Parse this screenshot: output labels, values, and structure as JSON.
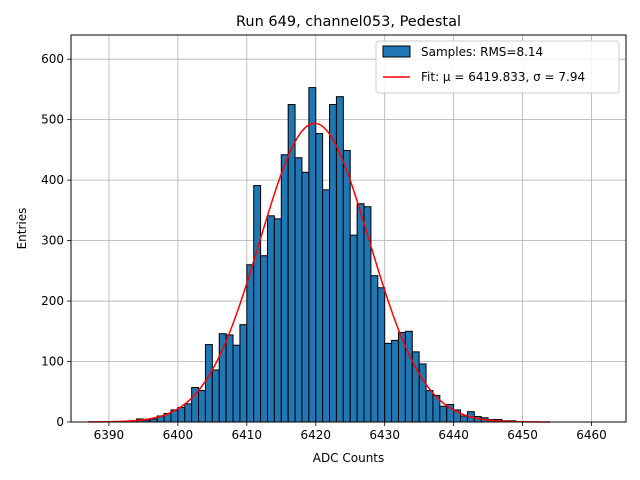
{
  "chart_data": {
    "type": "bar",
    "title": "Run 649, channel053, Pedestal",
    "xlabel": "ADC Counts",
    "ylabel": "Entries",
    "xlim": [
      6384.5,
      6465
    ],
    "ylim": [
      0,
      640
    ],
    "grid": true,
    "legend_position": "upper-right",
    "x_ticks": [
      6390,
      6400,
      6410,
      6420,
      6430,
      6440,
      6450,
      6460
    ],
    "y_ticks": [
      0,
      100,
      200,
      300,
      400,
      500,
      600
    ],
    "bin_width": 1,
    "colors": {
      "bar": "#1f77b4",
      "edge": "#000000",
      "fit": "#ff0000",
      "grid": "#b0b0b0"
    },
    "bins": {
      "x": [
        6387,
        6388,
        6389,
        6390,
        6391,
        6392,
        6393,
        6394,
        6395,
        6396,
        6397,
        6398,
        6399,
        6400,
        6401,
        6402,
        6403,
        6404,
        6405,
        6406,
        6407,
        6408,
        6409,
        6410,
        6411,
        6412,
        6413,
        6414,
        6415,
        6416,
        6417,
        6418,
        6419,
        6420,
        6421,
        6422,
        6423,
        6424,
        6425,
        6426,
        6427,
        6428,
        6429,
        6430,
        6431,
        6432,
        6433,
        6434,
        6435,
        6436,
        6437,
        6438,
        6439,
        6440,
        6441,
        6442,
        6443,
        6444,
        6445,
        6446,
        6447,
        6448,
        6449,
        6450,
        6451,
        6452,
        6453,
        6454
      ],
      "values": [
        0,
        0,
        0,
        0,
        0,
        0,
        0,
        5,
        3,
        5,
        10,
        14,
        20,
        24,
        30,
        57,
        52,
        128,
        86,
        146,
        144,
        127,
        161,
        260,
        391,
        275,
        341,
        336,
        442,
        525,
        437,
        413,
        553,
        477,
        384,
        525,
        538,
        449,
        309,
        361,
        356,
        242,
        222,
        130,
        135,
        148,
        150,
        116,
        96,
        52,
        44,
        26,
        29,
        20,
        10,
        17,
        9,
        7,
        4,
        4,
        2,
        2,
        0,
        0,
        0,
        0,
        0,
        0
      ]
    },
    "series": [
      {
        "name": "Samples: RMS=8.14",
        "type": "histogram"
      },
      {
        "name": "Fit: μ = 6419.833, σ = 7.94",
        "type": "line",
        "mu": 6419.833,
        "sigma": 7.94,
        "amplitude": 494,
        "x_range": [
          6387,
          6454
        ]
      }
    ]
  }
}
